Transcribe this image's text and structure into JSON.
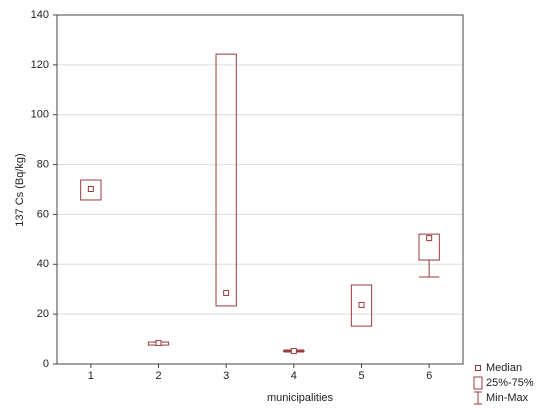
{
  "chart_data": {
    "type": "box",
    "y_label": "137 Cs (Bq/kg)",
    "x_label": "municipalities",
    "categories": [
      "1",
      "2",
      "3",
      "4",
      "5",
      "6"
    ],
    "median": [
      70.2,
      8.4,
      28.5,
      5.2,
      23.7,
      50.5
    ],
    "q1": [
      65.8,
      7.6,
      23.3,
      5.0,
      15.2,
      41.7
    ],
    "q3": [
      73.8,
      8.8,
      124.3,
      5.4,
      31.7,
      52.1
    ],
    "min": [
      65.8,
      7.6,
      23.3,
      4.8,
      15.2,
      34.9
    ],
    "max": [
      73.8,
      8.8,
      124.3,
      5.6,
      31.7,
      52.1
    ],
    "color": "#9b3a3a",
    "ylim": [
      0,
      140
    ],
    "yticks": [
      0,
      20,
      40,
      60,
      80,
      100,
      120,
      140
    ],
    "grid": true,
    "legend": [
      "Median",
      "25%-75%",
      "Min-Max"
    ]
  }
}
